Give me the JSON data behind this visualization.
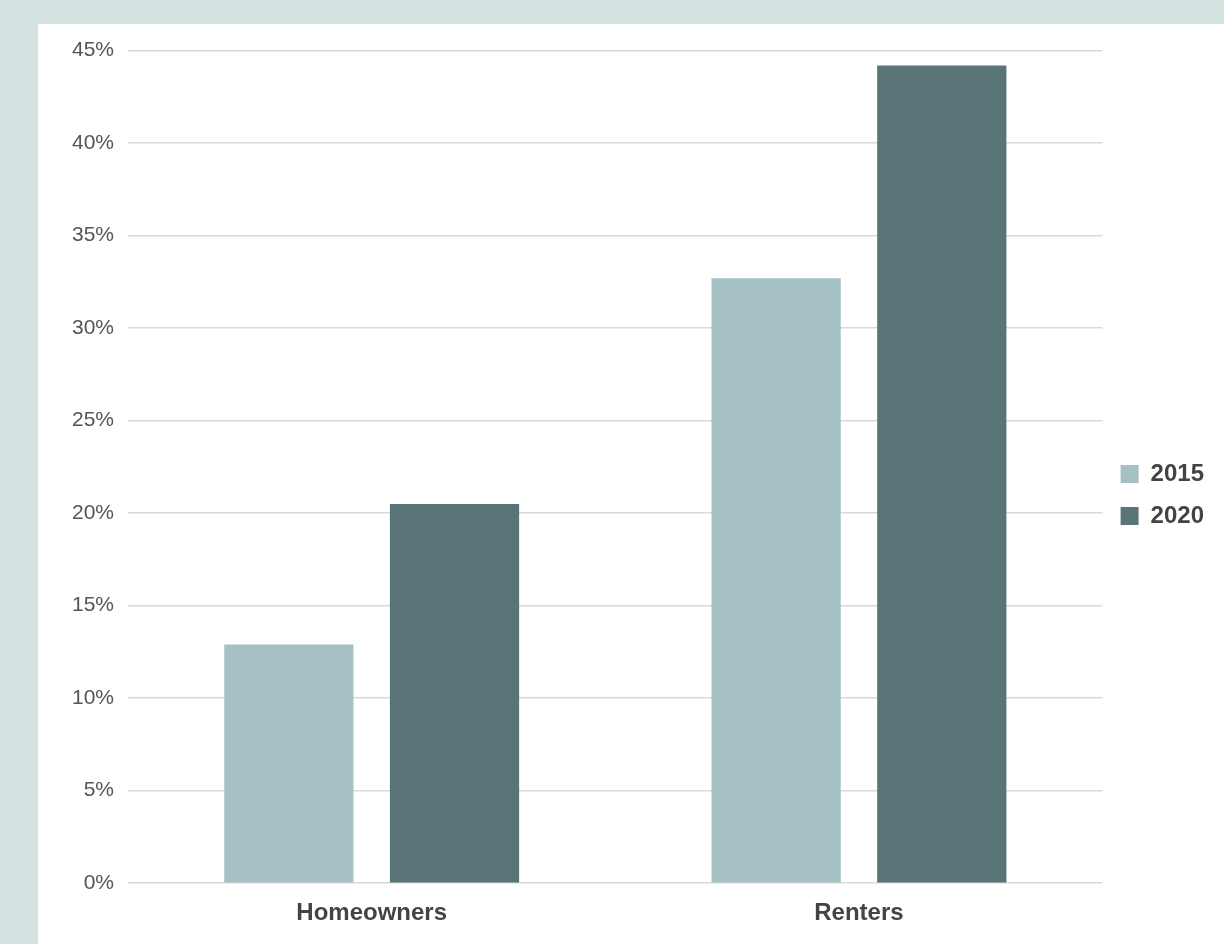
{
  "chart_data": {
    "type": "bar",
    "categories": [
      "Homeowners",
      "Renters"
    ],
    "series": [
      {
        "name": "2015",
        "color": "#a5c1c4",
        "values": [
          12.9,
          32.7
        ]
      },
      {
        "name": "2020",
        "color": "#587476",
        "values": [
          20.5,
          44.2
        ]
      }
    ],
    "ylim": [
      0,
      45
    ],
    "yticks": [
      {
        "value": 0,
        "label": "0%"
      },
      {
        "value": 5,
        "label": "5%"
      },
      {
        "value": 10,
        "label": "10%"
      },
      {
        "value": 15,
        "label": "15%"
      },
      {
        "value": 20,
        "label": "20%"
      },
      {
        "value": 25,
        "label": "25%"
      },
      {
        "value": 30,
        "label": "30%"
      },
      {
        "value": 35,
        "label": "35%"
      },
      {
        "value": 40,
        "label": "40%"
      },
      {
        "value": 45,
        "label": "45%"
      }
    ],
    "grid": "y",
    "legend": "right"
  }
}
